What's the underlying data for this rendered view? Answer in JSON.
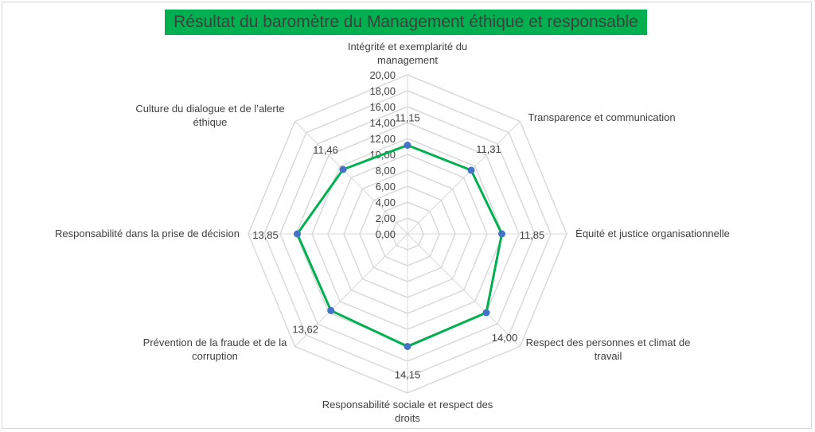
{
  "chart_data": {
    "type": "radar",
    "title": "Résultat du baromètre du Management éthique et responsable",
    "categories": [
      "Intégrité et exemplarité du management",
      "Transparence et communication",
      "Équité et justice organisationnelle",
      "Respect des personnes et climat de travail",
      "Responsabilité sociale et respect des droits",
      "Prévention de la fraude et de la corruption",
      "Responsabilité dans la prise de décision",
      "Culture du dialogue et de l’alerte éthique"
    ],
    "category_lines": [
      [
        "Intégrité et exemplarité du",
        "management"
      ],
      [
        "Transparence et communication"
      ],
      [
        "Équité et justice organisationnelle"
      ],
      [
        "Respect des personnes et climat de",
        "travail"
      ],
      [
        "Responsabilité sociale et respect des",
        "droits"
      ],
      [
        "Prévention de la fraude et de la",
        "corruption"
      ],
      [
        "Responsabilité dans la prise de décision"
      ],
      [
        "Culture du dialogue et de l’alerte",
        "éthique"
      ]
    ],
    "values": [
      11.15,
      11.31,
      11.85,
      14.0,
      14.15,
      13.62,
      13.85,
      11.46
    ],
    "value_labels": [
      "11,15",
      "11,31",
      "11,85",
      "14,00",
      "14,15",
      "13,62",
      "13,85",
      "11,46"
    ],
    "tick_values": [
      0,
      2,
      4,
      6,
      8,
      10,
      12,
      14,
      16,
      18,
      20
    ],
    "tick_labels": [
      "0,00",
      "2,00",
      "4,00",
      "6,00",
      "8,00",
      "10,00",
      "12,00",
      "14,00",
      "16,00",
      "18,00",
      "20,00"
    ],
    "rlim": [
      0,
      20
    ],
    "grid": true,
    "colors": {
      "line": "#00b050",
      "marker": "#4472c4",
      "grid": "#d9d9d9",
      "title_bg": "#00b050"
    }
  }
}
